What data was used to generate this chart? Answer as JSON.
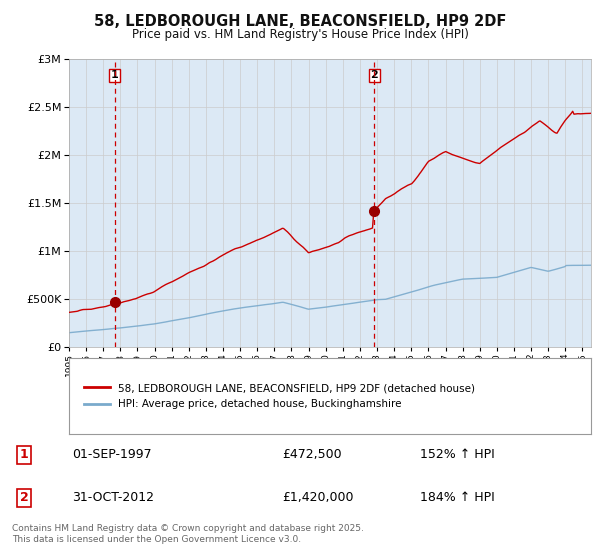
{
  "title": "58, LEDBOROUGH LANE, BEACONSFIELD, HP9 2DF",
  "subtitle": "Price paid vs. HM Land Registry's House Price Index (HPI)",
  "red_line_color": "#cc0000",
  "blue_line_color": "#7aaacc",
  "blue_fill_color": "#dce9f5",
  "dashed_line_color": "#cc0000",
  "background_color": "#ffffff",
  "grid_color": "#cccccc",
  "label_box_color": "#cc0000",
  "purchase1_date": "01-SEP-1997",
  "purchase1_price": "£472,500",
  "purchase1_hpi": "152% ↑ HPI",
  "purchase1_year": 1997.67,
  "purchase1_value": 472500,
  "purchase2_date": "31-OCT-2012",
  "purchase2_price": "£1,420,000",
  "purchase2_hpi": "184% ↑ HPI",
  "purchase2_year": 2012.83,
  "purchase2_value": 1420000,
  "ylim_max": 3000000,
  "legend_label_red": "58, LEDBOROUGH LANE, BEACONSFIELD, HP9 2DF (detached house)",
  "legend_label_blue": "HPI: Average price, detached house, Buckinghamshire",
  "footer": "Contains HM Land Registry data © Crown copyright and database right 2025.\nThis data is licensed under the Open Government Licence v3.0.",
  "year_start": 1995,
  "year_end": 2025
}
